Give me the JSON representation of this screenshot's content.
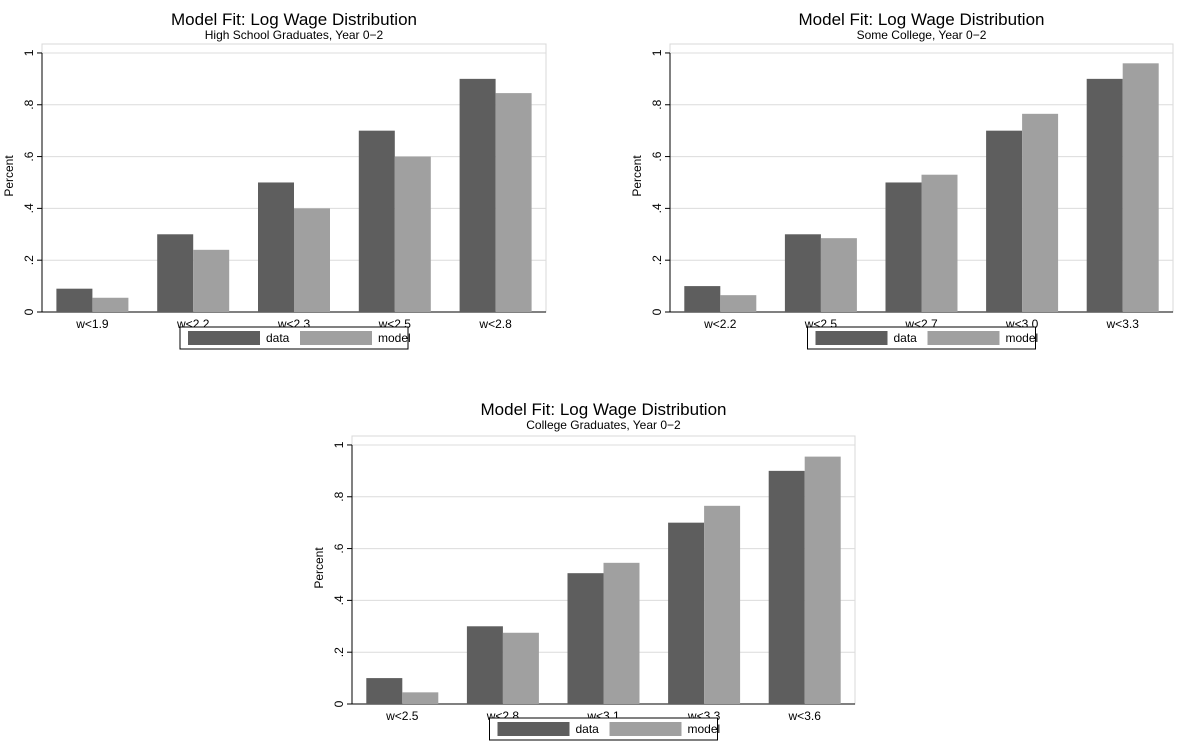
{
  "chart_data": [
    {
      "type": "bar",
      "title": "Model Fit: Log Wage Distribution",
      "subtitle": "High School Graduates, Year 0−2",
      "xlabel": "",
      "ylabel": "Percent",
      "ylim": [
        0,
        1.05
      ],
      "yticks": [
        0,
        0.2,
        0.4,
        0.6,
        0.8,
        1
      ],
      "ytick_labels": [
        "0",
        ".2",
        ".4",
        ".6",
        ".8",
        "1"
      ],
      "grid": true,
      "legend_position": "bottom",
      "categories": [
        "w<1.9",
        "w<2.2",
        "w<2.3",
        "w<2.5",
        "w<2.8"
      ],
      "series": [
        {
          "name": "data",
          "color": "#5e5e5e",
          "values": [
            0.09,
            0.3,
            0.5,
            0.7,
            0.9
          ]
        },
        {
          "name": "model",
          "color": "#a0a0a0",
          "values": [
            0.055,
            0.24,
            0.4,
            0.6,
            0.845
          ]
        }
      ]
    },
    {
      "type": "bar",
      "title": "Model Fit: Log Wage Distribution",
      "subtitle": "Some College, Year 0−2",
      "xlabel": "",
      "ylabel": "Percent",
      "ylim": [
        0,
        1.05
      ],
      "yticks": [
        0,
        0.2,
        0.4,
        0.6,
        0.8,
        1
      ],
      "ytick_labels": [
        "0",
        ".2",
        ".4",
        ".6",
        ".8",
        "1"
      ],
      "grid": true,
      "legend_position": "bottom",
      "categories": [
        "w<2.2",
        "w<2.5",
        "w<2.7",
        "w<3.0",
        "w<3.3"
      ],
      "series": [
        {
          "name": "data",
          "color": "#5e5e5e",
          "values": [
            0.1,
            0.3,
            0.5,
            0.7,
            0.9
          ]
        },
        {
          "name": "model",
          "color": "#a0a0a0",
          "values": [
            0.065,
            0.285,
            0.53,
            0.765,
            0.96
          ]
        }
      ]
    },
    {
      "type": "bar",
      "title": "Model Fit: Log Wage Distribution",
      "subtitle": "College Graduates, Year 0−2",
      "xlabel": "",
      "ylabel": "Percent",
      "ylim": [
        0,
        1.05
      ],
      "yticks": [
        0,
        0.2,
        0.4,
        0.6,
        0.8,
        1
      ],
      "ytick_labels": [
        "0",
        ".2",
        ".4",
        ".6",
        ".8",
        "1"
      ],
      "grid": true,
      "legend_position": "bottom",
      "categories": [
        "w<2.5",
        "w<2.8",
        "w<3.1",
        "w<3.3",
        "w<3.6"
      ],
      "series": [
        {
          "name": "data",
          "color": "#5e5e5e",
          "values": [
            0.1,
            0.3,
            0.505,
            0.7,
            0.9
          ]
        },
        {
          "name": "model",
          "color": "#a0a0a0",
          "values": [
            0.045,
            0.275,
            0.545,
            0.765,
            0.955
          ]
        }
      ]
    }
  ]
}
